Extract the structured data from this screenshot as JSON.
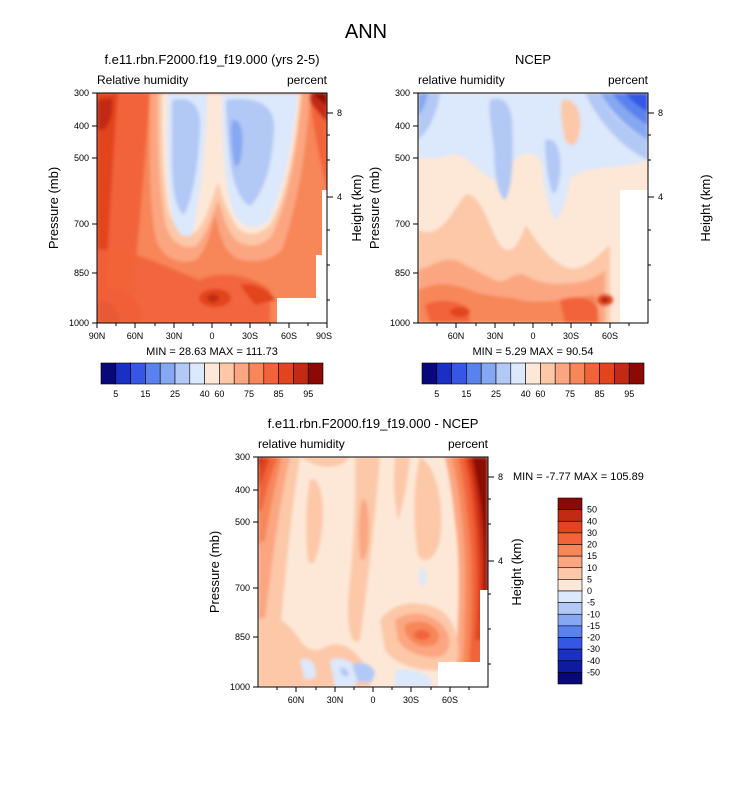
{
  "page_title": "ANN",
  "chart_data": [
    {
      "type": "heatmap",
      "title": "f.e11.rbn.F2000.f19_f19.000 (yrs 2-5)",
      "left_label": "Relative humidity",
      "right_label": "percent",
      "ylabel": "Pressure (mb)",
      "y2label": "Height (km)",
      "xticks": [
        "90N",
        "60N",
        "30N",
        "0",
        "30S",
        "60S",
        "90S"
      ],
      "yticks": [
        "300",
        "400",
        "500",
        "700",
        "850",
        "1000"
      ],
      "y2ticks": [
        "8",
        "4"
      ],
      "stats": "MIN = 28.63  MAX = 111.73",
      "colorbar": {
        "labels": [
          "5",
          "15",
          "25",
          "40",
          "60",
          "75",
          "85",
          "95"
        ],
        "colors": [
          "#08087a",
          "#1a2fc4",
          "#3656e6",
          "#5a82ee",
          "#86a8f2",
          "#b2c8f5",
          "#dce8fb",
          "#fde8d8",
          "#fcc8a8",
          "#fba681",
          "#f78659",
          "#f2633a",
          "#e2441f",
          "#c32a14",
          "#8c0a06"
        ]
      }
    },
    {
      "type": "heatmap",
      "title": "NCEP",
      "left_label": "relative humidity",
      "right_label": "percent",
      "ylabel": "Pressure (mb)",
      "y2label": "Height (km)",
      "xticks": [
        "60N",
        "30N",
        "0",
        "30S",
        "60S"
      ],
      "yticks": [
        "300",
        "400",
        "500",
        "700",
        "850",
        "1000"
      ],
      "y2ticks": [
        "8",
        "4"
      ],
      "stats": "MIN =  5.29  MAX = 90.54",
      "colorbar": {
        "labels": [
          "5",
          "15",
          "25",
          "40",
          "60",
          "75",
          "85",
          "95"
        ],
        "colors": [
          "#08087a",
          "#1a2fc4",
          "#3656e6",
          "#5a82ee",
          "#86a8f2",
          "#b2c8f5",
          "#dce8fb",
          "#fde8d8",
          "#fcc8a8",
          "#fba681",
          "#f78659",
          "#f2633a",
          "#e2441f",
          "#c32a14",
          "#8c0a06"
        ]
      }
    },
    {
      "type": "heatmap",
      "title": "f.e11.rbn.F2000.f19_f19.000 - NCEP",
      "left_label": "relative humidity",
      "right_label": "percent",
      "ylabel": "Pressure (mb)",
      "y2label": "Height (km)",
      "xticks": [
        "60N",
        "30N",
        "0",
        "30S",
        "60S"
      ],
      "yticks": [
        "300",
        "400",
        "500",
        "700",
        "850",
        "1000"
      ],
      "y2ticks": [
        "8",
        "4"
      ],
      "stats": "MIN = -7.77  MAX = 105.89",
      "colorbar": {
        "labels": [
          "50",
          "40",
          "30",
          "20",
          "15",
          "10",
          "5",
          "0",
          "-5",
          "-10",
          "-15",
          "-20",
          "-30",
          "-40",
          "-50"
        ],
        "colors": [
          "#8c0a06",
          "#c32a14",
          "#e2441f",
          "#f2633a",
          "#f78659",
          "#fba681",
          "#fcc8a8",
          "#fde8d8",
          "#dce8fb",
          "#b2c8f5",
          "#86a8f2",
          "#5a82ee",
          "#3656e6",
          "#1a2fc4",
          "#0e1aa0",
          "#08087a"
        ]
      }
    }
  ]
}
